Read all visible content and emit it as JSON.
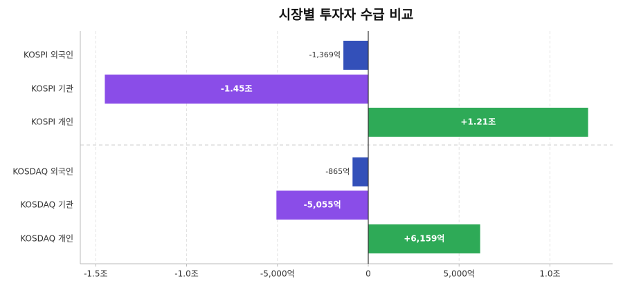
{
  "chart_data": {
    "type": "hbar",
    "title": "시장별 투자자 수급 비교",
    "categories": [
      "KOSPI 외국인",
      "KOSPI 기관",
      "KOSPI 개인",
      "KOSDAQ 외국인",
      "KOSDAQ 기관",
      "KOSDAQ 개인"
    ],
    "values": [
      -1369,
      -14500,
      12100,
      -865,
      -5055,
      6159
    ],
    "value_labels": [
      "-1,369억",
      "-1.45조",
      "+1.21조",
      "-865억",
      "-5,055억",
      "+6,159억"
    ],
    "colors": [
      "#3350b9",
      "#8a4de8",
      "#2eaa57",
      "#3350b9",
      "#8a4de8",
      "#2eaa57"
    ],
    "xlim": [
      -15850,
      13450
    ],
    "xticks": [
      {
        "value": -15000,
        "label": "-1.5조"
      },
      {
        "value": -10000,
        "label": "-1.0조"
      },
      {
        "value": -5000,
        "label": "-5,000억"
      },
      0,
      {
        "value": 5000,
        "label": "5,000억"
      },
      {
        "value": 10000,
        "label": "1.0조"
      }
    ],
    "grid": true
  }
}
